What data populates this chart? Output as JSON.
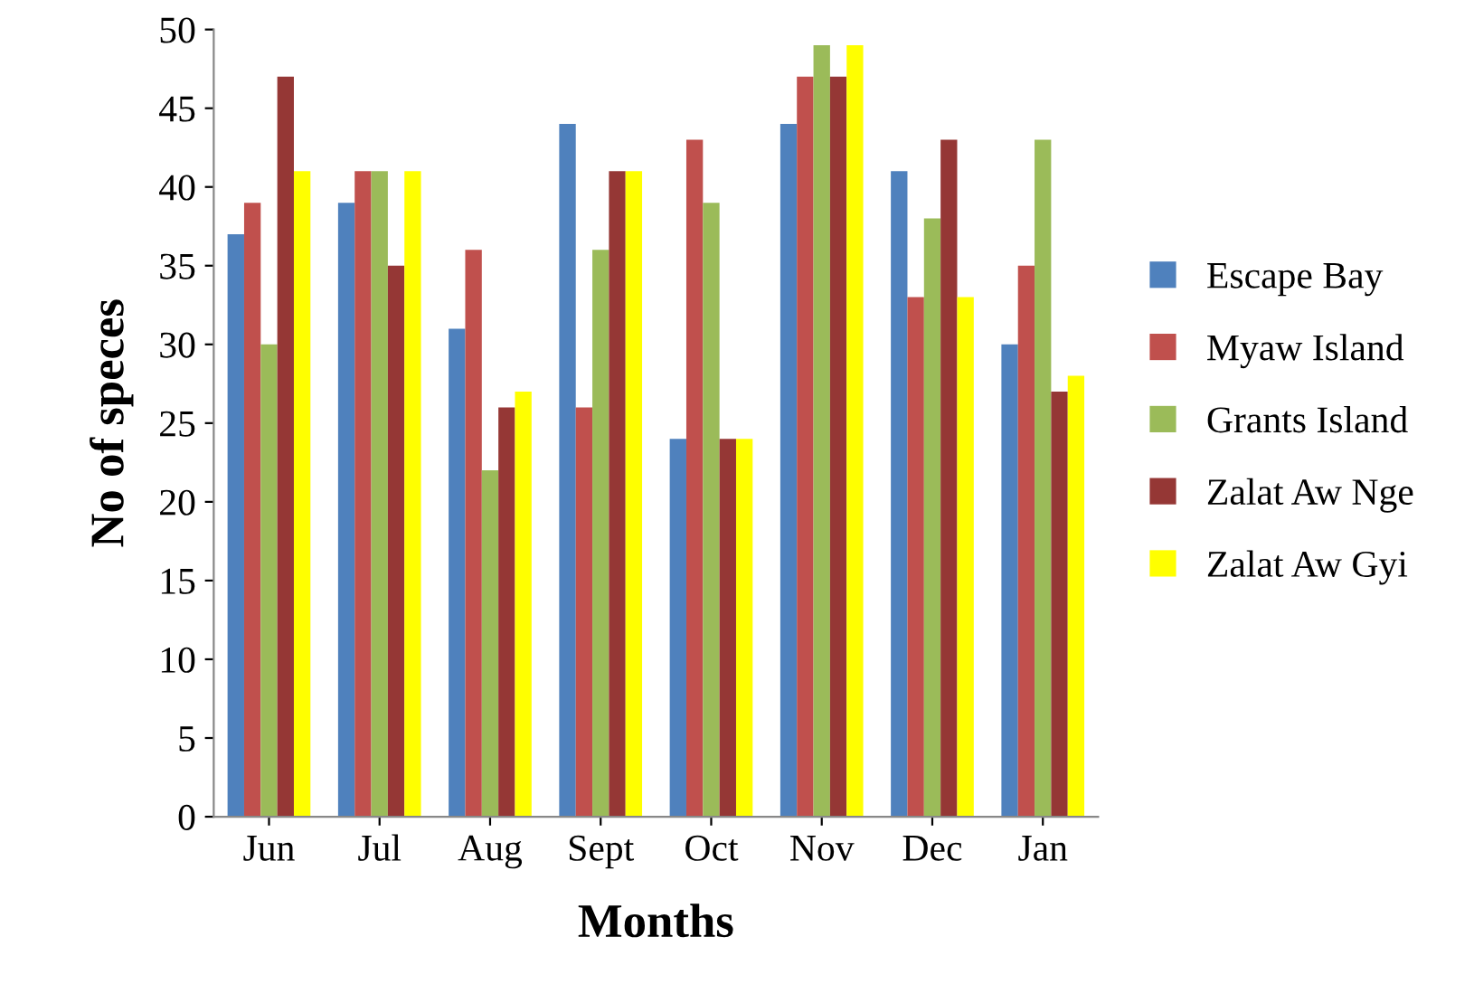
{
  "chart_data": {
    "type": "bar",
    "xlabel": "Months",
    "ylabel": "No of speces",
    "categories": [
      "Jun",
      "Jul",
      "Aug",
      "Sept",
      "Oct",
      "Nov",
      "Dec",
      "Jan"
    ],
    "series": [
      {
        "name": "Escape Bay",
        "color": "#4f81bd",
        "values": [
          37,
          39,
          31,
          44,
          24,
          44,
          41,
          30
        ]
      },
      {
        "name": "Myaw Island",
        "color": "#c0504d",
        "values": [
          39,
          41,
          36,
          26,
          43,
          47,
          33,
          35
        ]
      },
      {
        "name": "Grants Island",
        "color": "#9bbb59",
        "values": [
          30,
          41,
          22,
          36,
          39,
          49,
          38,
          43
        ]
      },
      {
        "name": "Zalat Aw Nge",
        "color": "#953735",
        "values": [
          47,
          35,
          26,
          41,
          24,
          47,
          43,
          27
        ]
      },
      {
        "name": "Zalat Aw Gyi",
        "color": "#ffff00",
        "values": [
          41,
          41,
          27,
          41,
          24,
          49,
          33,
          28
        ]
      }
    ],
    "ylim": [
      0,
      50
    ],
    "yticks": [
      0,
      5,
      10,
      15,
      20,
      25,
      30,
      35,
      40,
      45,
      50
    ],
    "grid": false,
    "legend": "right"
  }
}
